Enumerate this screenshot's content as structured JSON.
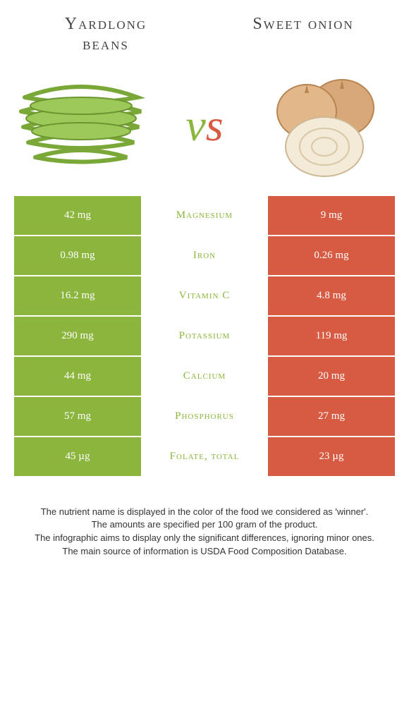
{
  "colors": {
    "left": "#8bb53d",
    "right": "#d75b43",
    "mid_bg": "#ffffff",
    "text_dark": "#444444"
  },
  "foods": {
    "left": {
      "title": "Yardlong beans"
    },
    "right": {
      "title": "Sweet onion"
    }
  },
  "vs": {
    "v": "v",
    "s": "s"
  },
  "rows": [
    {
      "left": "42 mg",
      "label": "Magnesium",
      "right": "9 mg",
      "winner": "left"
    },
    {
      "left": "0.98 mg",
      "label": "Iron",
      "right": "0.26 mg",
      "winner": "left"
    },
    {
      "left": "16.2 mg",
      "label": "Vitamin C",
      "right": "4.8 mg",
      "winner": "left"
    },
    {
      "left": "290 mg",
      "label": "Potassium",
      "right": "119 mg",
      "winner": "left"
    },
    {
      "left": "44 mg",
      "label": "Calcium",
      "right": "20 mg",
      "winner": "left"
    },
    {
      "left": "57 mg",
      "label": "Phosphorus",
      "right": "27 mg",
      "winner": "left"
    },
    {
      "left": "45 µg",
      "label": "Folate, total",
      "right": "23 µg",
      "winner": "left"
    }
  ],
  "footnotes": [
    "The nutrient name is displayed in the color of the food we considered as 'winner'.",
    "The amounts are specified per 100 gram of the product.",
    "The infographic aims to display only the significant differences, ignoring minor ones.",
    "The main source of information is USDA Food Composition Database."
  ]
}
